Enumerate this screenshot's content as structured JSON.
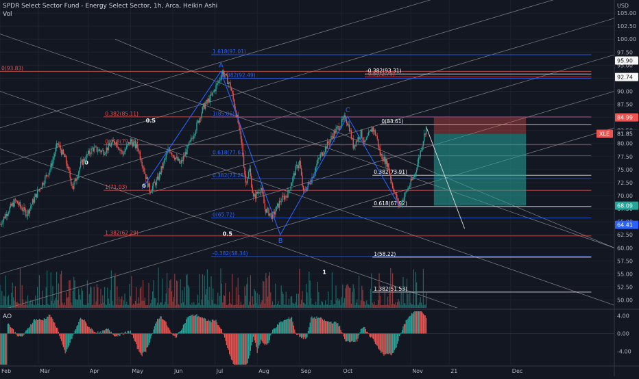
{
  "header": {
    "title": "SPDR Select Sector Fund - Energy Select Sector, 1h, Arca, Heikin Ashi",
    "volume_label": "Vol",
    "ao_label": "AO"
  },
  "chart_data": {
    "type": "candlestick",
    "symbol": "XLE",
    "currency": "USD",
    "price_axis": {
      "ticks": [
        "105.00",
        "102.50",
        "100.00",
        "97.50",
        "95.00",
        "92.50",
        "90.00",
        "87.50",
        "85.00",
        "82.50",
        "80.00",
        "77.50",
        "75.00",
        "72.50",
        "70.00",
        "67.50",
        "65.00",
        "62.50",
        "60.00",
        "57.50",
        "55.00",
        "52.50",
        "50.00"
      ],
      "range": [
        48.5,
        107.5
      ]
    },
    "ao_axis": {
      "ticks": [
        "4.00",
        "0.00",
        "-4.00"
      ],
      "range": [
        -7,
        5
      ]
    },
    "time_axis": {
      "labels": [
        "Feb",
        "Mar",
        "Apr",
        "May",
        "Jun",
        "Jul",
        "Aug",
        "Sep",
        "Oct",
        "Nov",
        "21",
        "Dec"
      ]
    },
    "price_badges": [
      {
        "value": "95.90",
        "color": "#f7f7f7",
        "text": "#131722"
      },
      {
        "value": "92.74",
        "color": "#f7f7f7",
        "text": "#131722"
      },
      {
        "value": "84.99",
        "color": "#ef5350",
        "text": "#ffffff"
      },
      {
        "value": "81.86",
        "color": "#ef5350",
        "text": "#ffffff",
        "label": "XLE"
      },
      {
        "value": "81.85",
        "color": "#131722",
        "text": "#d1d4dc"
      },
      {
        "value": "68.09",
        "color": "#26a69a",
        "text": "#ffffff"
      },
      {
        "value": "64.41",
        "color": "#2962ff",
        "text": "#ffffff"
      }
    ],
    "price_path": [
      [
        0,
        64.5
      ],
      [
        2,
        67
      ],
      [
        4,
        69
      ],
      [
        7,
        66.5
      ],
      [
        10,
        71
      ],
      [
        13,
        75
      ],
      [
        15,
        80
      ],
      [
        17,
        77
      ],
      [
        19,
        71.5
      ],
      [
        21,
        76
      ],
      [
        24,
        79
      ],
      [
        27,
        78.5
      ],
      [
        30,
        80.5
      ],
      [
        32,
        78
      ],
      [
        34,
        80.5
      ],
      [
        36,
        79
      ],
      [
        39,
        71
      ],
      [
        41,
        73
      ],
      [
        44,
        79
      ],
      [
        47,
        76
      ],
      [
        50,
        81
      ],
      [
        53,
        87
      ],
      [
        55,
        89
      ],
      [
        57,
        92
      ],
      [
        58,
        93.8
      ],
      [
        60,
        91
      ],
      [
        62,
        84
      ],
      [
        63,
        79.5
      ],
      [
        64,
        72.5
      ],
      [
        65,
        75
      ],
      [
        66,
        69.5
      ],
      [
        68,
        71.5
      ],
      [
        69,
        67.5
      ],
      [
        71,
        66
      ],
      [
        73,
        69
      ],
      [
        75,
        70.5
      ],
      [
        77,
        75
      ],
      [
        78,
        76.5
      ],
      [
        79,
        70.5
      ],
      [
        81,
        73
      ],
      [
        83,
        77
      ],
      [
        85,
        79.5
      ],
      [
        87,
        82
      ],
      [
        89,
        84
      ],
      [
        90,
        85
      ],
      [
        91,
        83
      ],
      [
        92,
        79.5
      ],
      [
        94,
        82
      ],
      [
        95,
        80
      ],
      [
        97,
        83
      ],
      [
        98,
        81.5
      ],
      [
        99,
        78
      ],
      [
        101,
        76
      ],
      [
        102,
        72.5
      ],
      [
        103,
        70
      ],
      [
        104,
        68
      ],
      [
        105,
        69.5
      ],
      [
        106,
        71
      ],
      [
        107,
        72.5
      ],
      [
        108,
        74
      ],
      [
        109,
        77
      ],
      [
        110,
        80
      ],
      [
        111,
        83.2
      ]
    ],
    "bar_count": 160,
    "x_domain": [
      0,
      160
    ],
    "elliott_labels": [
      {
        "label": "A",
        "x": 57.5,
        "y": 93.8
      },
      {
        "label": "B",
        "x": 73,
        "y": 62.5
      },
      {
        "label": "C",
        "x": 90.5,
        "y": 85.2
      }
    ],
    "fib_levels": [
      {
        "label": "1.618(97.01)",
        "value": 97.01,
        "x0": 55,
        "x1": 154,
        "color": "#2962ff"
      },
      {
        "label": "0(93.83)",
        "value": 93.83,
        "x0": 0,
        "x1": 154,
        "color": "#ef5350"
      },
      {
        "label": "-0.382(92.49)",
        "value": 92.49,
        "x0": 57,
        "x1": 154,
        "color": "#2962ff"
      },
      {
        "label": "-0.382(93.31)",
        "value": 93.31,
        "x0": 95,
        "x1": 154,
        "color": "#ffffff"
      },
      {
        "label": "-0.5(92.78)",
        "value": 92.78,
        "x0": 95,
        "x1": 154,
        "color": "#ef5350"
      },
      {
        "label": "0.382(85.11)",
        "value": 85.11,
        "x0": 27,
        "x1": 154,
        "color": "#ef5350"
      },
      {
        "label": "1(85.06)",
        "value": 85.06,
        "x0": 55,
        "x1": 154,
        "color": "#2962ff"
      },
      {
        "label": "0(83.61)",
        "value": 83.61,
        "x0": 99,
        "x1": 154,
        "color": "#ffffff"
      },
      {
        "label": "0.618(79.74)",
        "value": 79.74,
        "x0": 27,
        "x1": 154,
        "color": "#ef5350"
      },
      {
        "label": "0.618(77.67)",
        "value": 77.67,
        "x0": 55,
        "x1": 154,
        "color": "#2962ff"
      },
      {
        "label": "0.382(73.91)",
        "value": 73.91,
        "x0": 97,
        "x1": 154,
        "color": "#ffffff"
      },
      {
        "label": "0.382(73.25)",
        "value": 73.25,
        "x0": 55,
        "x1": 154,
        "color": "#2962ff"
      },
      {
        "label": "1(71.03)",
        "value": 71.03,
        "x0": 27,
        "x1": 154,
        "color": "#ef5350"
      },
      {
        "label": "0.618(67.92)",
        "value": 67.92,
        "x0": 97,
        "x1": 154,
        "color": "#ffffff"
      },
      {
        "label": "0(65.72)",
        "value": 65.72,
        "x0": 55,
        "x1": 154,
        "color": "#2962ff"
      },
      {
        "label": "1.382(62.29)",
        "value": 62.29,
        "x0": 27,
        "x1": 154,
        "color": "#ef5350"
      },
      {
        "label": "-0.382(58.34)",
        "value": 58.34,
        "x0": 55,
        "x1": 154,
        "color": "#2962ff"
      },
      {
        "label": "1(58.22)",
        "value": 58.22,
        "x0": 97,
        "x1": 154,
        "color": "#ffffff"
      },
      {
        "label": "1.382(51.53)",
        "value": 51.53,
        "x0": 97,
        "x1": 154,
        "color": "#ffffff"
      }
    ],
    "channel_labels": [
      {
        "label": "0.5",
        "x": 38,
        "y": 84
      },
      {
        "label": "0",
        "x": 22,
        "y": 76
      },
      {
        "label": "0",
        "x": 37,
        "y": 71.5
      },
      {
        "label": "0.5",
        "x": 58,
        "y": 62.3
      },
      {
        "label": "1",
        "x": 84,
        "y": 55
      }
    ],
    "position": {
      "entry": 81.85,
      "stop": 84.99,
      "target": 68.09,
      "x0": 113,
      "x1": 137,
      "projection_end": [
        121,
        63.7
      ]
    }
  }
}
